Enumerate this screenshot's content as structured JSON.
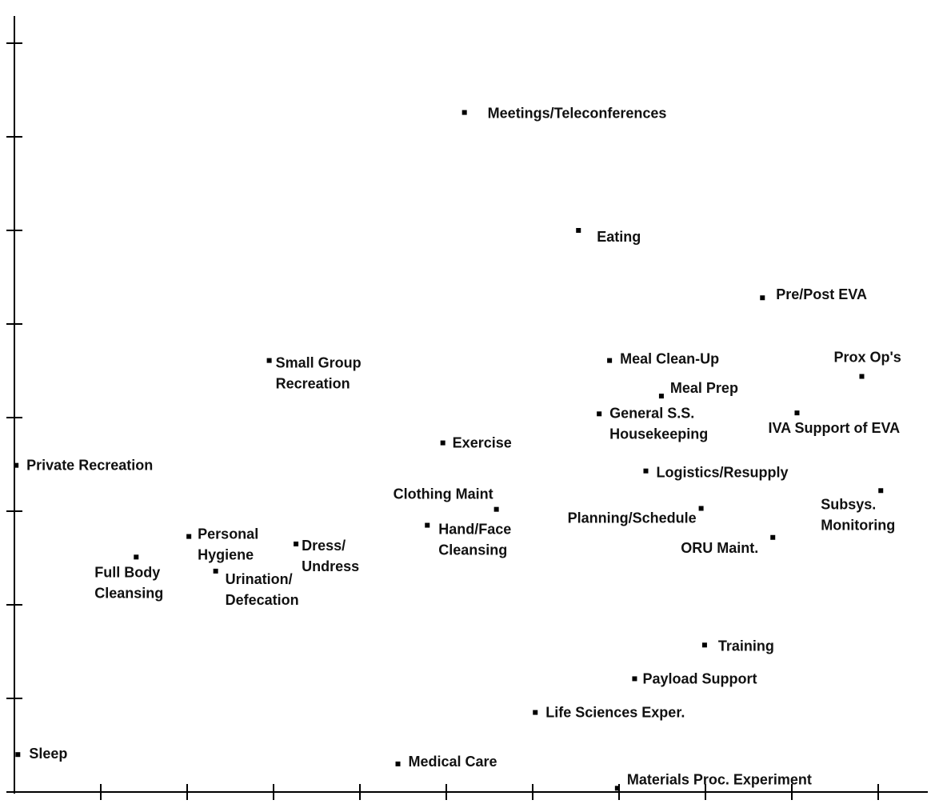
{
  "chart_data": {
    "type": "scatter",
    "color": "#000000",
    "xlim": [
      0,
      10.7
    ],
    "ylim": [
      0,
      8.5
    ],
    "xticks": [
      1,
      2,
      3,
      4,
      5,
      6,
      7,
      8,
      9,
      10
    ],
    "yticks": [
      1,
      2,
      3,
      4,
      5,
      6,
      7,
      8
    ],
    "x": [
      5.21,
      6.53,
      8.66,
      9.81,
      6.89,
      7.49,
      6.77,
      9.06,
      2.95,
      4.96,
      0.02,
      7.31,
      10.03,
      5.58,
      7.95,
      4.78,
      2.02,
      3.26,
      8.78,
      1.41,
      2.33,
      7.99,
      7.18,
      6.03,
      0.04,
      4.44,
      6.98
    ],
    "values": [
      7.26,
      6.0,
      5.28,
      4.44,
      4.61,
      4.23,
      4.04,
      4.05,
      4.61,
      3.73,
      3.49,
      3.43,
      3.22,
      3.02,
      3.03,
      2.85,
      2.73,
      2.65,
      2.72,
      2.51,
      2.36,
      1.57,
      1.21,
      0.85,
      0.4,
      0.3,
      0.04
    ],
    "point_labels": [
      [
        "Meetings/Teleconferences"
      ],
      [
        "Eating"
      ],
      [
        "Pre/Post EVA"
      ],
      [
        "Prox Op's"
      ],
      [
        "Meal Clean-Up"
      ],
      [
        "Meal Prep"
      ],
      [
        "General S.S.",
        "Housekeeping"
      ],
      [
        "IVA Support of EVA"
      ],
      [
        "Small Group",
        "Recreation"
      ],
      [
        "Exercise"
      ],
      [
        "Private Recreation"
      ],
      [
        "Logistics/Resupply"
      ],
      [
        "Subsys.",
        "Monitoring"
      ],
      [
        "Clothing Maint"
      ],
      [
        "Planning/Schedule"
      ],
      [
        "Hand/Face",
        "Cleansing"
      ],
      [
        "Personal",
        "Hygiene"
      ],
      [
        "Dress/",
        "Undress"
      ],
      [
        "ORU Maint."
      ],
      [
        "Full Body",
        "Cleansing"
      ],
      [
        "Urination/",
        "Defecation"
      ],
      [
        "Training"
      ],
      [
        "Payload Support"
      ],
      [
        "Life Sciences Exper."
      ],
      [
        "Sleep"
      ],
      [
        "Medical Care"
      ],
      [
        "Materials Proc. Experiment"
      ]
    ]
  }
}
